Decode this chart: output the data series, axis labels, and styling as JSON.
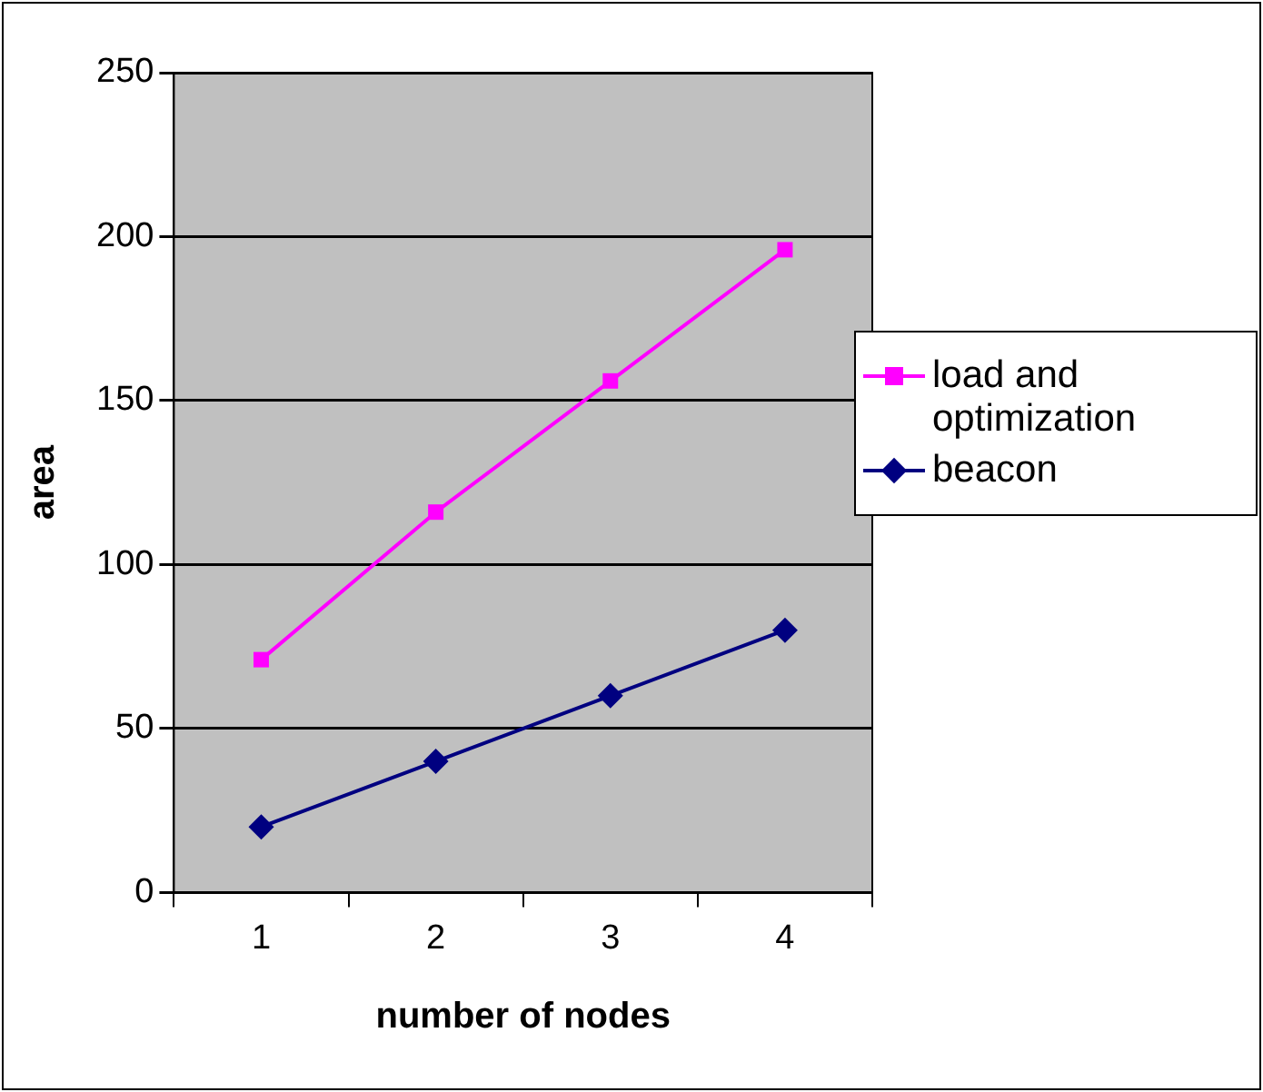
{
  "chart_data": {
    "type": "line",
    "xlabel": "number of nodes",
    "ylabel": "area",
    "categories": [
      "1",
      "2",
      "3",
      "4"
    ],
    "series": [
      {
        "name": "load and optimization",
        "color": "#ff00ff",
        "marker": "square",
        "values": [
          71,
          116,
          156,
          196
        ]
      },
      {
        "name": "beacon",
        "color": "#000080",
        "marker": "diamond",
        "values": [
          20,
          40,
          60,
          80
        ]
      }
    ],
    "ylim": [
      0,
      250
    ],
    "yticks": [
      0,
      50,
      100,
      150,
      200,
      250
    ],
    "grid": "y",
    "legend": "right",
    "line_style": "solid"
  }
}
